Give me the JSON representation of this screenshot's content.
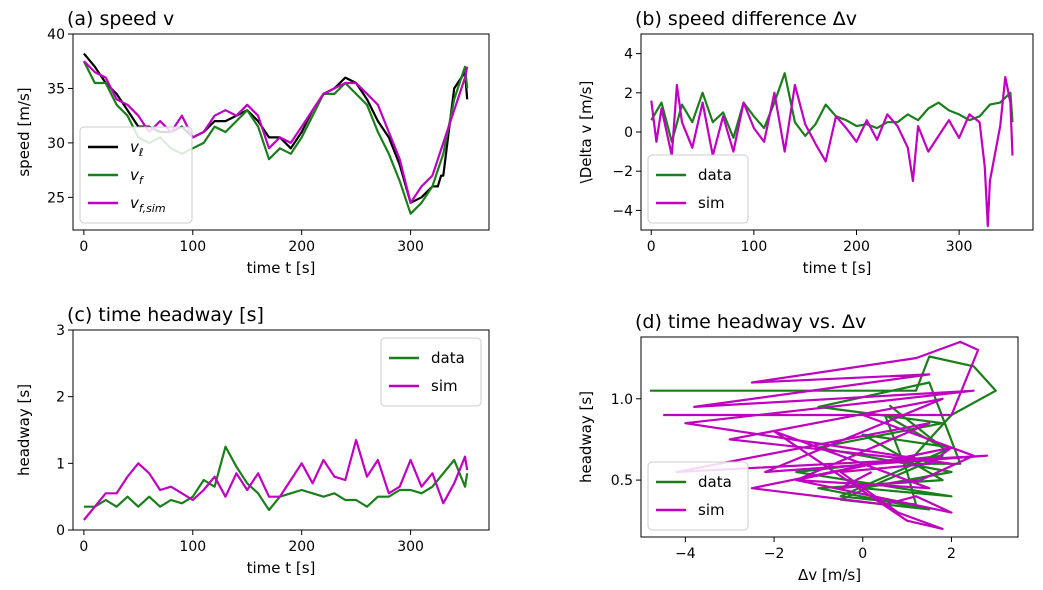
{
  "chart_data": [
    {
      "id": "a",
      "type": "line",
      "title": "(a) speed v",
      "xlabel": "time t [s]",
      "ylabel": "speed [m/s]",
      "xlim": [
        -10,
        372
      ],
      "ylim": [
        22,
        40
      ],
      "xticks": [
        0,
        100,
        200,
        300
      ],
      "yticks": [
        25,
        30,
        35,
        40
      ],
      "legend_position": "lower-left",
      "series": [
        {
          "name": "v_ℓ",
          "color": "#000000",
          "x": [
            0,
            10,
            20,
            30,
            40,
            50,
            60,
            70,
            80,
            90,
            100,
            110,
            120,
            130,
            140,
            150,
            160,
            170,
            180,
            190,
            200,
            210,
            220,
            230,
            240,
            250,
            260,
            270,
            280,
            290,
            300,
            310,
            320,
            325,
            328,
            330,
            335,
            340,
            350,
            352
          ],
          "y": [
            38.2,
            37,
            35.5,
            34.5,
            33,
            31.5,
            31.5,
            31,
            31,
            31.5,
            30.5,
            31,
            32,
            32,
            32.5,
            33,
            32,
            30.5,
            30.5,
            29.5,
            31,
            33,
            34.5,
            35,
            36,
            35.5,
            34,
            32,
            30.5,
            28,
            24.5,
            25,
            26,
            26,
            27,
            27,
            31,
            35,
            36.5,
            34
          ]
        },
        {
          "name": "v_f",
          "color": "#1a7f1a",
          "x": [
            0,
            10,
            20,
            30,
            40,
            50,
            60,
            70,
            80,
            90,
            100,
            110,
            120,
            130,
            140,
            150,
            160,
            170,
            180,
            190,
            200,
            210,
            220,
            230,
            240,
            250,
            260,
            270,
            280,
            290,
            300,
            310,
            320,
            330,
            340,
            350,
            352
          ],
          "y": [
            37.5,
            35.5,
            35.5,
            33.5,
            32.5,
            30.5,
            30,
            30.5,
            29.5,
            29,
            29.5,
            30,
            31.5,
            31,
            32,
            33,
            31.5,
            28.5,
            29.5,
            29,
            30.5,
            32.5,
            34.5,
            34.5,
            35.5,
            34.5,
            33.5,
            31,
            29,
            26.5,
            23.5,
            24.5,
            26,
            29,
            34,
            37,
            35
          ]
        },
        {
          "name": "v_f,sim",
          "color": "#c000c0",
          "x": [
            0,
            10,
            20,
            30,
            40,
            50,
            60,
            70,
            80,
            90,
            100,
            110,
            120,
            130,
            140,
            150,
            160,
            170,
            180,
            190,
            200,
            210,
            220,
            230,
            240,
            250,
            260,
            270,
            280,
            290,
            300,
            310,
            320,
            330,
            340,
            350,
            352
          ],
          "y": [
            37.5,
            36.5,
            36,
            34,
            33.5,
            32.5,
            31,
            32,
            31,
            32.5,
            30.5,
            31,
            32.5,
            33,
            32.5,
            33.5,
            32.5,
            29.5,
            30.5,
            30,
            31.5,
            33,
            34.5,
            35,
            35.5,
            35.5,
            34.5,
            33.5,
            31,
            28.5,
            24.5,
            26,
            27,
            30,
            33,
            36,
            37
          ]
        }
      ]
    },
    {
      "id": "b",
      "type": "line",
      "title": "(b) speed difference Δv",
      "xlabel": "time t [s]",
      "ylabel": "\\Delta v [m/s]",
      "xlim": [
        -10,
        372
      ],
      "ylim": [
        -5,
        5
      ],
      "xticks": [
        0,
        100,
        200,
        300
      ],
      "yticks": [
        -4,
        -2,
        0,
        2,
        4
      ],
      "legend_position": "lower-left",
      "series": [
        {
          "name": "data",
          "color": "#1a7f1a",
          "x": [
            0,
            10,
            20,
            30,
            40,
            50,
            60,
            70,
            80,
            90,
            100,
            110,
            120,
            130,
            140,
            150,
            160,
            170,
            180,
            190,
            200,
            210,
            220,
            230,
            240,
            250,
            260,
            270,
            280,
            290,
            300,
            310,
            320,
            330,
            340,
            350,
            352
          ],
          "y": [
            0.6,
            1.5,
            -0.5,
            1.4,
            0.5,
            2,
            0.5,
            1,
            -0.3,
            1.5,
            0.8,
            0.2,
            1.5,
            3,
            0.5,
            -0.2,
            0.4,
            1.4,
            0.8,
            0.6,
            0.3,
            0.4,
            0.2,
            0.5,
            0.5,
            0.9,
            0.6,
            1.2,
            1.5,
            1.1,
            0.9,
            0.6,
            0.8,
            1.4,
            1.5,
            2,
            0.5
          ]
        },
        {
          "name": "sim",
          "color": "#c000c0",
          "x": [
            0,
            5,
            10,
            20,
            25,
            30,
            40,
            50,
            60,
            70,
            80,
            90,
            100,
            110,
            120,
            130,
            140,
            150,
            160,
            170,
            180,
            190,
            200,
            210,
            220,
            230,
            240,
            250,
            255,
            260,
            270,
            280,
            290,
            300,
            310,
            320,
            325,
            328,
            330,
            340,
            345,
            350,
            352
          ],
          "y": [
            1.6,
            -0.5,
            1.2,
            -1.2,
            2.4,
            0.5,
            -0.8,
            1.5,
            -1.2,
            0.8,
            -1,
            1.5,
            0.2,
            -0.5,
            2,
            -1,
            2.4,
            0.4,
            -0.6,
            -1.5,
            0.8,
            0.2,
            -0.5,
            0.6,
            -0.4,
            0.9,
            0.3,
            -0.8,
            -2.5,
            0.3,
            -1,
            -0.2,
            0.6,
            -0.3,
            0.9,
            0.5,
            -1.8,
            -4.8,
            -2.5,
            0.3,
            2.8,
            1.5,
            -1.2
          ]
        }
      ]
    },
    {
      "id": "c",
      "type": "line",
      "title": "(c) time headway [s]",
      "xlabel": "time t [s]",
      "ylabel": "headway [s]",
      "xlim": [
        -10,
        372
      ],
      "ylim": [
        0,
        3
      ],
      "xticks": [
        0,
        100,
        200,
        300
      ],
      "yticks": [
        0,
        1,
        2,
        3
      ],
      "legend_position": "upper-right",
      "series": [
        {
          "name": "data",
          "color": "#1a7f1a",
          "x": [
            0,
            10,
            20,
            30,
            40,
            50,
            60,
            70,
            80,
            90,
            100,
            110,
            120,
            130,
            140,
            150,
            160,
            170,
            180,
            190,
            200,
            210,
            220,
            230,
            240,
            250,
            260,
            270,
            280,
            290,
            300,
            310,
            320,
            330,
            340,
            350,
            352
          ],
          "y": [
            0.35,
            0.35,
            0.45,
            0.35,
            0.5,
            0.35,
            0.5,
            0.35,
            0.45,
            0.4,
            0.5,
            0.75,
            0.65,
            1.25,
            0.95,
            0.7,
            0.55,
            0.3,
            0.5,
            0.55,
            0.6,
            0.55,
            0.5,
            0.55,
            0.45,
            0.45,
            0.35,
            0.5,
            0.5,
            0.6,
            0.6,
            0.55,
            0.65,
            0.85,
            1.05,
            0.65,
            0.85
          ]
        },
        {
          "name": "sim",
          "color": "#c000c0",
          "x": [
            0,
            10,
            20,
            30,
            40,
            50,
            60,
            70,
            80,
            90,
            100,
            110,
            120,
            130,
            140,
            150,
            160,
            170,
            180,
            190,
            200,
            210,
            220,
            230,
            240,
            250,
            260,
            270,
            280,
            290,
            300,
            310,
            320,
            330,
            340,
            350,
            352
          ],
          "y": [
            0.15,
            0.35,
            0.55,
            0.55,
            0.8,
            1.0,
            0.85,
            0.6,
            0.65,
            0.55,
            0.45,
            0.6,
            0.8,
            0.5,
            0.85,
            0.6,
            0.85,
            0.5,
            0.5,
            0.75,
            1.0,
            0.7,
            1.05,
            0.8,
            0.75,
            1.35,
            0.8,
            1.05,
            0.55,
            0.65,
            1.05,
            0.65,
            0.85,
            0.4,
            0.7,
            1.1,
            0.9
          ]
        }
      ]
    },
    {
      "id": "d",
      "type": "line",
      "title": "(d) time headway vs. Δv",
      "xlabel": "Δv [m/s]",
      "ylabel": "headway [s]",
      "xlim": [
        -5,
        3.5
      ],
      "ylim": [
        0.15,
        1.38
      ],
      "xticks": [
        -4,
        -2,
        0,
        2
      ],
      "yticks": [
        0.5,
        1.0
      ],
      "legend_position": "lower-left",
      "series": [
        {
          "name": "data",
          "color": "#1a7f1a",
          "x": [
            -4.8,
            1.2,
            1.5,
            2.5,
            3.0,
            2.0,
            1.0,
            2.2,
            1.5,
            -1.0,
            1.8,
            -1.0,
            2.0,
            0.0,
            2.0,
            -1.5,
            1.8,
            -0.5,
            1.5,
            -1.0,
            1.8,
            0.0,
            2.0,
            -0.5,
            1.2,
            1.0,
            0.5,
            1.8,
            0.6
          ],
          "y": [
            1.05,
            1.05,
            1.26,
            1.2,
            1.05,
            0.9,
            0.6,
            0.6,
            1.1,
            0.95,
            0.85,
            0.7,
            0.55,
            0.45,
            0.4,
            0.55,
            0.65,
            0.38,
            0.32,
            0.45,
            0.5,
            0.78,
            0.7,
            0.4,
            0.35,
            0.55,
            0.9,
            0.7,
            0.96
          ]
        },
        {
          "name": "sim",
          "color": "#c000c0",
          "x": [
            -4.5,
            2.0,
            2.6,
            2.2,
            1.2,
            -2.5,
            1.5,
            -3.8,
            2.5,
            -4.0,
            2.0,
            -3.0,
            1.8,
            -2.2,
            2.8,
            -4.2,
            1.5,
            -1.5,
            2.0,
            -2.5,
            0.5,
            1.2,
            2.0,
            -1.5,
            1.5,
            -2.0,
            1.0,
            1.8,
            0.8,
            -0.5,
            1.5,
            2.0,
            0.0,
            2.5,
            1.3,
            -0.5,
            0.2
          ],
          "y": [
            0.9,
            0.9,
            1.3,
            1.35,
            1.25,
            1.1,
            1.15,
            0.95,
            1.05,
            0.85,
            0.6,
            0.75,
            1.0,
            0.55,
            0.65,
            0.55,
            0.85,
            0.5,
            0.7,
            0.45,
            0.35,
            0.4,
            0.3,
            0.5,
            0.45,
            0.8,
            0.25,
            0.2,
            0.3,
            0.55,
            0.6,
            0.7,
            0.9,
            0.65,
            0.5,
            0.45,
            0.55
          ]
        }
      ]
    }
  ]
}
